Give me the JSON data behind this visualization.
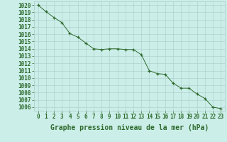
{
  "x": [
    0,
    1,
    2,
    3,
    4,
    5,
    6,
    7,
    8,
    9,
    10,
    11,
    12,
    13,
    14,
    15,
    16,
    17,
    18,
    19,
    20,
    21,
    22,
    23
  ],
  "y": [
    1020.0,
    1019.1,
    1018.3,
    1017.6,
    1016.1,
    1015.6,
    1014.8,
    1014.0,
    1013.9,
    1014.0,
    1014.0,
    1013.9,
    1013.9,
    1013.2,
    1011.0,
    1010.6,
    1010.5,
    1009.3,
    1008.6,
    1008.6,
    1007.8,
    1007.2,
    1006.0,
    1005.8
  ],
  "line_color": "#2d6a2d",
  "marker": "+",
  "marker_color": "#2d6a2d",
  "background_color": "#cceee8",
  "grid_color": "#aaccca",
  "xlabel": "Graphe pression niveau de la mer (hPa)",
  "ylim_min": 1005.5,
  "ylim_max": 1020.5,
  "xlim_min": -0.5,
  "xlim_max": 23.5,
  "ytick_min": 1006,
  "ytick_max": 1020,
  "label_fontsize": 7,
  "tick_fontsize": 5.5
}
